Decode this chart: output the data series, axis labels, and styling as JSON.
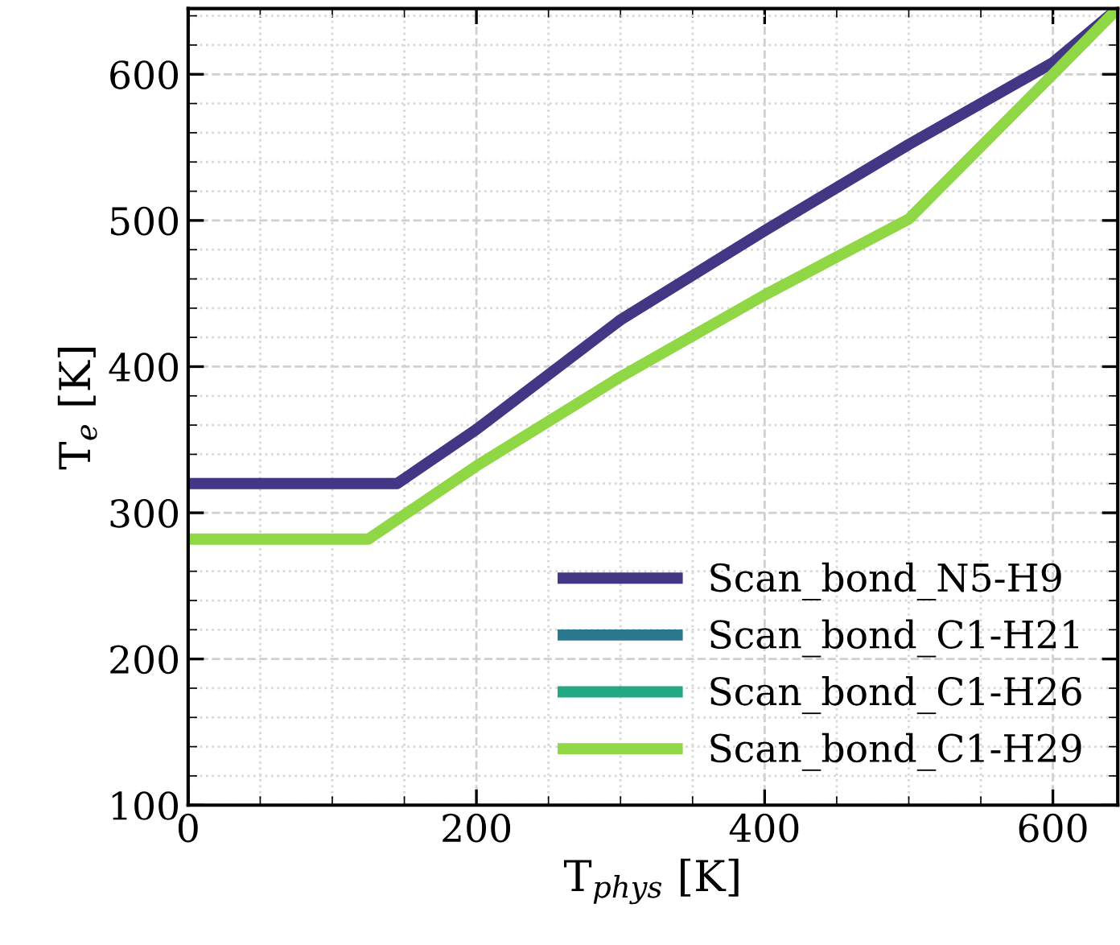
{
  "chart_data": {
    "type": "line",
    "xlabel": "T$_{phys}$ [K]",
    "ylabel": "T$_{e}$ [K]",
    "xlim": [
      0,
      645
    ],
    "ylim": [
      100,
      645
    ],
    "xticks": [
      0,
      200,
      400,
      600
    ],
    "yticks": [
      100,
      200,
      300,
      400,
      500,
      600
    ],
    "x": [
      0,
      125,
      200,
      300,
      400,
      500,
      600,
      645
    ],
    "grid": true,
    "legend": "bottom right",
    "marker": "none",
    "line_style": "solid",
    "series": [
      {
        "name": "Scan_bond_N5-H9",
        "color": "#433685",
        "x": [
          0,
          145,
          200,
          300,
          400,
          500,
          600,
          645
        ],
        "values": [
          320,
          320,
          357,
          432,
          493,
          552,
          608,
          645
        ]
      },
      {
        "name": "Scan_bond_C1-H21",
        "color": "#2a788e",
        "values": [
          null,
          null,
          null,
          null,
          null,
          null,
          null,
          null
        ]
      },
      {
        "name": "Scan_bond_C1-H26",
        "color": "#22a884",
        "values": [
          null,
          null,
          null,
          null,
          null,
          null,
          null,
          null
        ]
      },
      {
        "name": "Scan_bond_C1-H29",
        "color": "#8fd744",
        "values": [
          282,
          282,
          332,
          393,
          449,
          501,
          600,
          645
        ]
      }
    ]
  }
}
